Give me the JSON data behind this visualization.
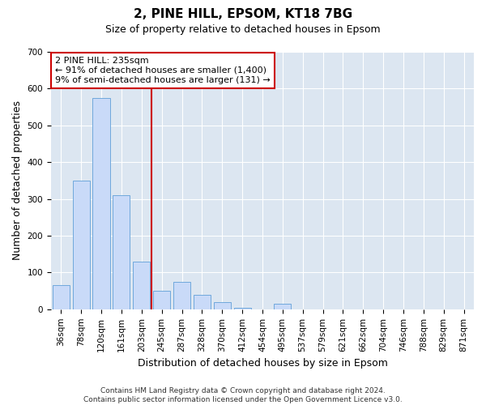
{
  "title1": "2, PINE HILL, EPSOM, KT18 7BG",
  "title2": "Size of property relative to detached houses in Epsom",
  "xlabel": "Distribution of detached houses by size in Epsom",
  "ylabel": "Number of detached properties",
  "categories": [
    "36sqm",
    "78sqm",
    "120sqm",
    "161sqm",
    "203sqm",
    "245sqm",
    "287sqm",
    "328sqm",
    "370sqm",
    "412sqm",
    "454sqm",
    "495sqm",
    "537sqm",
    "579sqm",
    "621sqm",
    "662sqm",
    "704sqm",
    "746sqm",
    "788sqm",
    "829sqm",
    "871sqm"
  ],
  "values": [
    65,
    350,
    575,
    310,
    130,
    50,
    75,
    40,
    20,
    5,
    0,
    15,
    0,
    0,
    0,
    0,
    0,
    0,
    0,
    0,
    0
  ],
  "bar_color": "#c9daf8",
  "bar_edge_color": "#6fa8dc",
  "vline_x": 4.5,
  "vline_color": "#cc0000",
  "annotation_text": "2 PINE HILL: 235sqm\n← 91% of detached houses are smaller (1,400)\n9% of semi-detached houses are larger (131) →",
  "annotation_box_color": "#ffffff",
  "annotation_box_edge": "#cc0000",
  "ylim": [
    0,
    700
  ],
  "yticks": [
    0,
    100,
    200,
    300,
    400,
    500,
    600,
    700
  ],
  "footer": "Contains HM Land Registry data © Crown copyright and database right 2024.\nContains public sector information licensed under the Open Government Licence v3.0.",
  "plot_bg_color": "#dce6f1",
  "title1_fontsize": 11,
  "title2_fontsize": 9,
  "axis_label_fontsize": 9,
  "tick_fontsize": 7.5,
  "annotation_fontsize": 8,
  "footer_fontsize": 6.5
}
